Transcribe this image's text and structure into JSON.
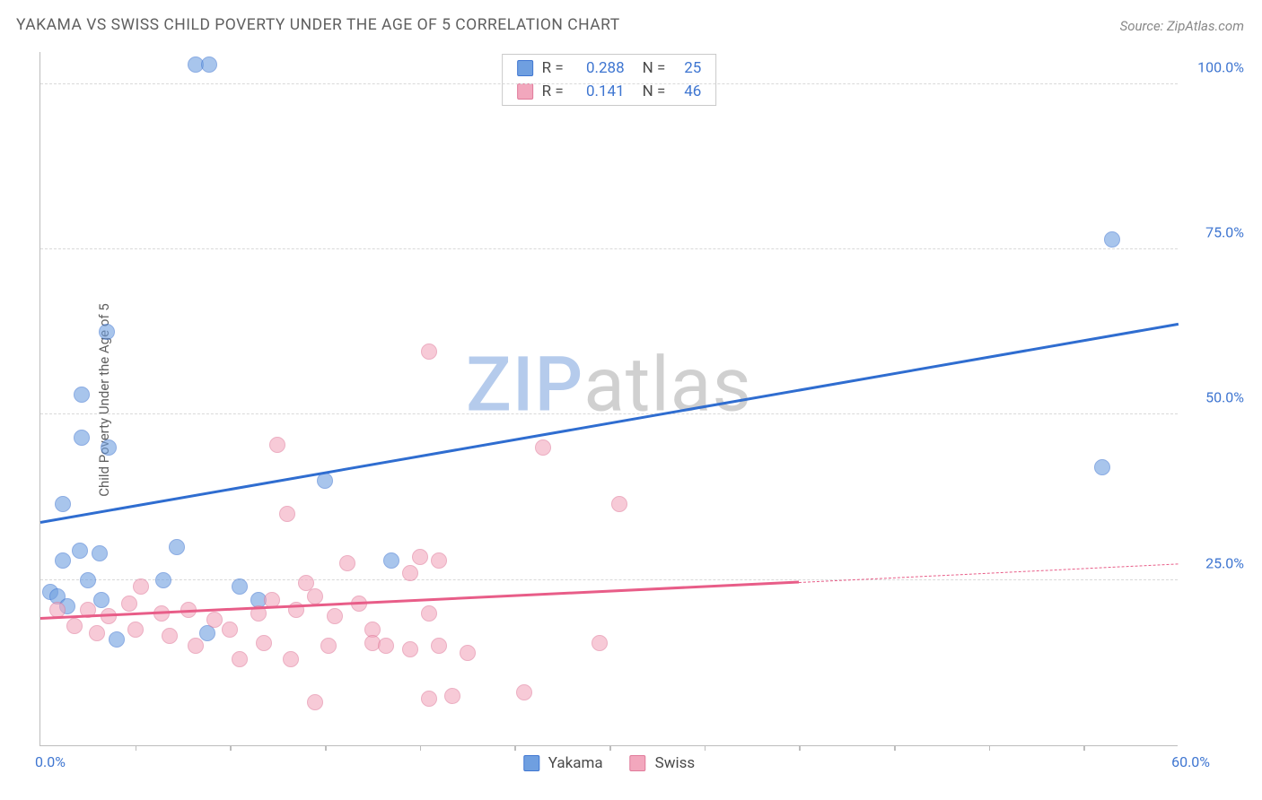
{
  "title": "YAKAMA VS SWISS CHILD POVERTY UNDER THE AGE OF 5 CORRELATION CHART",
  "source": "Source: ZipAtlas.com",
  "ylabel": "Child Poverty Under the Age of 5",
  "watermark_zip": "ZIP",
  "watermark_atlas": "atlas",
  "chart": {
    "type": "scatter",
    "background_color": "#ffffff",
    "grid_color": "#d9d9d9",
    "axis_color": "#bdbdbd",
    "tick_label_color": "#3f76d1",
    "label_fontsize": 15,
    "tick_fontsize": 16,
    "title_fontsize": 17.5,
    "xlim": [
      0,
      60
    ],
    "xlim_labels": [
      "0.0%",
      "60.0%"
    ],
    "xtick_step": 5,
    "ylim": [
      0,
      105
    ],
    "ytick_positions": [
      25,
      50,
      75,
      100
    ],
    "ytick_labels": [
      "25.0%",
      "50.0%",
      "75.0%",
      "100.0%"
    ],
    "marker_size": 18,
    "marker_opacity_fill": 0.35,
    "marker_opacity_stroke": 0.9,
    "line_width": 3,
    "series": [
      {
        "name": "Yakama",
        "color": "#6f9fe0",
        "stroke": "#3f76d1",
        "line_color": "#2f6dd0",
        "r": 0.288,
        "n": 25,
        "points": [
          [
            8.2,
            103
          ],
          [
            8.9,
            103
          ],
          [
            56.5,
            76.5
          ],
          [
            3.5,
            62.5
          ],
          [
            2.2,
            53
          ],
          [
            2.2,
            46.5
          ],
          [
            3.6,
            45
          ],
          [
            56,
            42
          ],
          [
            15,
            40
          ],
          [
            1.2,
            36.5
          ],
          [
            7.2,
            30.0
          ],
          [
            2.1,
            29.5
          ],
          [
            3.1,
            29
          ],
          [
            1.2,
            28
          ],
          [
            18.5,
            28
          ],
          [
            0.5,
            23.2
          ],
          [
            0.9,
            22.5
          ],
          [
            6.5,
            25
          ],
          [
            2.5,
            25
          ],
          [
            10.5,
            24
          ],
          [
            3.2,
            22
          ],
          [
            11.5,
            22
          ],
          [
            8.8,
            17
          ],
          [
            1.4,
            21
          ],
          [
            4.0,
            16
          ]
        ],
        "trend": {
          "x1": 0,
          "y1": 33.5,
          "x2": 60,
          "y2": 63.5
        }
      },
      {
        "name": "Swiss",
        "color": "#f2a7bd",
        "stroke": "#e07a9a",
        "line_color": "#e85d88",
        "r": 0.141,
        "n": 46,
        "points": [
          [
            20.5,
            59.5
          ],
          [
            12.5,
            45.5
          ],
          [
            26.5,
            45
          ],
          [
            30.5,
            36.5
          ],
          [
            13,
            35
          ],
          [
            20,
            28.5
          ],
          [
            16.2,
            27.5
          ],
          [
            19.5,
            26
          ],
          [
            21,
            28
          ],
          [
            14,
            24.5
          ],
          [
            5.3,
            24
          ],
          [
            0.9,
            20.5
          ],
          [
            2.5,
            20.5
          ],
          [
            3.6,
            19.5
          ],
          [
            4.7,
            21.5
          ],
          [
            6.4,
            20
          ],
          [
            7.8,
            20.5
          ],
          [
            9.2,
            19
          ],
          [
            10,
            17.5
          ],
          [
            11.5,
            20
          ],
          [
            12.2,
            22
          ],
          [
            13.5,
            20.5
          ],
          [
            14.5,
            22.5
          ],
          [
            15.5,
            19.5
          ],
          [
            16.8,
            21.5
          ],
          [
            17.5,
            17.5
          ],
          [
            1.8,
            18
          ],
          [
            3.0,
            17
          ],
          [
            5.0,
            17.5
          ],
          [
            6.8,
            16.5
          ],
          [
            8.2,
            15
          ],
          [
            10.5,
            13
          ],
          [
            11.8,
            15.5
          ],
          [
            13.2,
            13
          ],
          [
            15.2,
            15
          ],
          [
            17.5,
            15.5
          ],
          [
            18.2,
            15
          ],
          [
            19.5,
            14.5
          ],
          [
            21,
            15
          ],
          [
            22.5,
            14
          ],
          [
            29.5,
            15.5
          ],
          [
            25.5,
            8
          ],
          [
            20.5,
            7
          ],
          [
            21.7,
            7.5
          ],
          [
            14.5,
            6.5
          ],
          [
            20.5,
            20
          ]
        ],
        "trend": {
          "x1": 0,
          "y1": 19,
          "x2": 40,
          "y2": 24.5
        },
        "trend_dash": {
          "x1": 40,
          "y1": 24.5,
          "x2": 60,
          "y2": 27.3
        }
      }
    ],
    "legend_top": {
      "r_label": "R =",
      "n_label": "N ="
    },
    "legend_bottom": [
      "Yakama",
      "Swiss"
    ]
  }
}
